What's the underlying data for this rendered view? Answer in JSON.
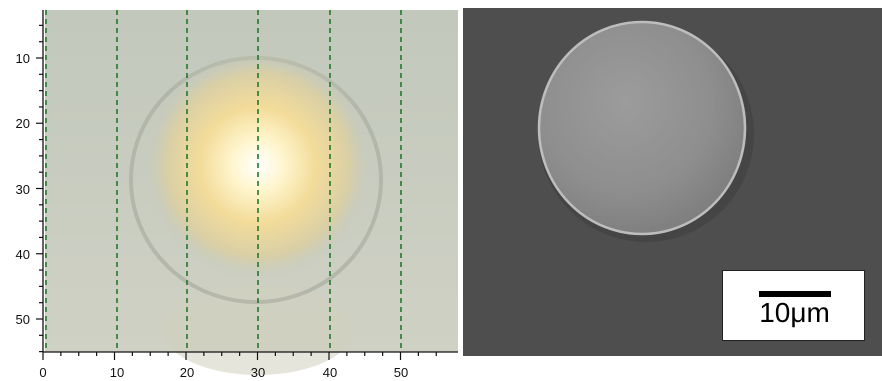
{
  "left_panel": {
    "x_ticks": [
      "0",
      "10",
      "20",
      "30",
      "40",
      "50"
    ],
    "y_ticks": [
      "10",
      "20",
      "30",
      "40",
      "50"
    ]
  },
  "right_panel": {
    "scale_bar_label": "10μm"
  },
  "colors": {
    "grid_dashes": "#1f7a2a",
    "optical_background": "#c4c9bd",
    "sem_background": "#4e4e4e"
  }
}
